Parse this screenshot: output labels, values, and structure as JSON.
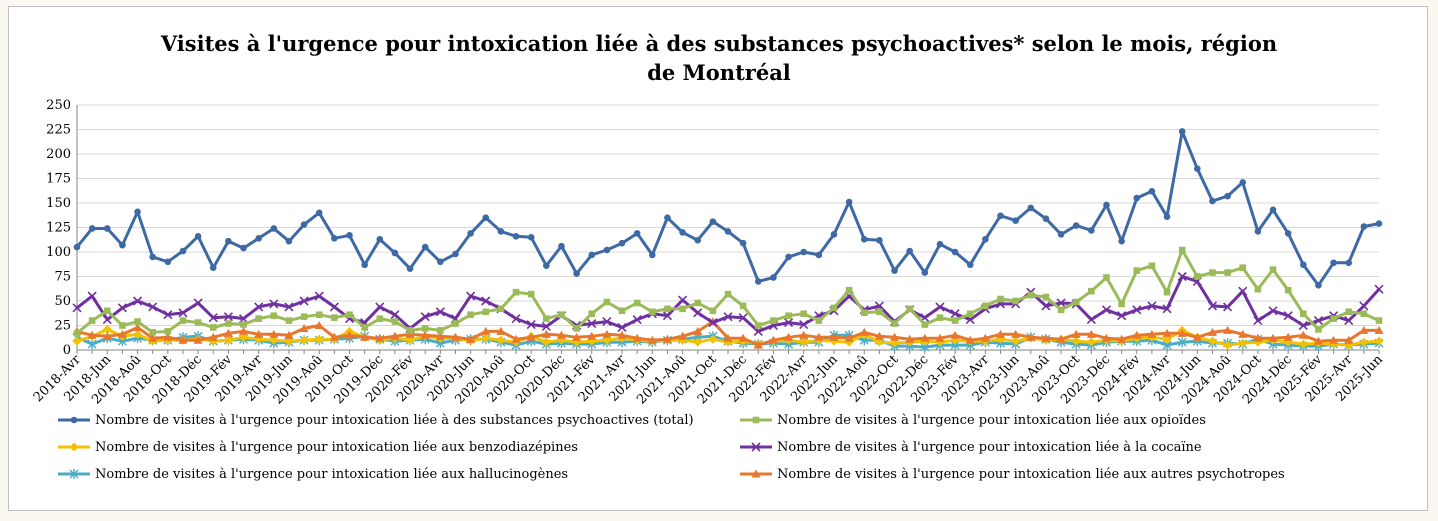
{
  "chart_data": {
    "type": "line",
    "title_line1": "Visites à l'urgence pour intoxication liée à des substances psychoactives* selon le mois, région",
    "title_line2": "de Montréal",
    "ylim": [
      0,
      250
    ],
    "yticks": [
      "0",
      "25",
      "50",
      "75",
      "100",
      "125",
      "150",
      "175",
      "200",
      "225",
      "250"
    ],
    "grid": true,
    "legend_position": "bottom",
    "categories": [
      "2018-Avr",
      "2018-Mai",
      "2018-Jun",
      "2018-Jul",
      "2018-Aoû",
      "2018-Sep",
      "2018-Oct",
      "2018-Nov",
      "2018-Déc",
      "2019-Jan",
      "2019-Fév",
      "2019-Mar",
      "2019-Avr",
      "2019-Mai",
      "2019-Jun",
      "2019-Jul",
      "2019-Aoû",
      "2019-Sep",
      "2019-Oct",
      "2019-Nov",
      "2019-Déc",
      "2020-Jan",
      "2020-Fév",
      "2020-Mar",
      "2020-Avr",
      "2020-Mai",
      "2020-Jun",
      "2020-Jul",
      "2020-Aoû",
      "2020-Sep",
      "2020-Oct",
      "2020-Nov",
      "2020-Déc",
      "2021-Jan",
      "2021-Fév",
      "2021-Mar",
      "2021-Avr",
      "2021-Mai",
      "2021-Jun",
      "2021-Jul",
      "2021-Aoû",
      "2021-Sep",
      "2021-Oct",
      "2021-Nov",
      "2021-Déc",
      "2022-Jan",
      "2022-Fév",
      "2022-Mar",
      "2022-Avr",
      "2022-Mai",
      "2022-Jun",
      "2022-Jul",
      "2022-Aoû",
      "2022-Sep",
      "2022-Oct",
      "2022-Nov",
      "2022-Déc",
      "2023-Jan",
      "2023-Fév",
      "2023-Mar",
      "2023-Avr",
      "2023-Mai",
      "2023-Jun",
      "2023-Jul",
      "2023-Aoû",
      "2023-Sep",
      "2023-Oct",
      "2023-Nov",
      "2023-Déc",
      "2024-Jan",
      "2024-Fév",
      "2024-Mar",
      "2024-Avr",
      "2024-Mai",
      "2024-Jun",
      "2024-Jul",
      "2024-Aoû",
      "2024-Sep",
      "2024-Oct",
      "2024-Nov",
      "2024-Déc",
      "2025-Jan",
      "2025-Fév",
      "2025-Mar",
      "2025-Avr",
      "2025-Mai",
      "2025-Jun"
    ],
    "tick_labels": [
      "2018-Avr",
      "2018-Jun",
      "2018-Aoû",
      "2018-Oct",
      "2018-Déc",
      "2019-Fév",
      "2019-Avr",
      "2019-Jun",
      "2019-Aoû",
      "2019-Oct",
      "2019-Déc",
      "2020-Fév",
      "2020-Avr",
      "2020-Jun",
      "2020-Aoû",
      "2020-Oct",
      "2020-Déc",
      "2021-Fév",
      "2021-Avr",
      "2021-Jun",
      "2021-Aoû",
      "2021-Oct",
      "2021-Déc",
      "2022-Fév",
      "2022-Avr",
      "2022-Jun",
      "2022-Aoû",
      "2022-Oct",
      "2022-Déc",
      "2023-Fév",
      "2023-Avr",
      "2023-Jun",
      "2023-Aoû",
      "2023-Oct",
      "2023-Déc",
      "2024-Fév",
      "2024-Avr",
      "2024-Jun",
      "2024-Aoû",
      "2024-Oct",
      "2024-Déc",
      "2025-Fév",
      "2025-Avr",
      "2025-Jun"
    ],
    "series": [
      {
        "name": "Nombre de visites à l'urgence pour intoxication liée à des substances psychoactives (total)",
        "color": "#3d69a5",
        "marker": "circle",
        "values": [
          105,
          124,
          124,
          107,
          141,
          95,
          90,
          101,
          116,
          84,
          111,
          104,
          114,
          124,
          111,
          128,
          140,
          114,
          117,
          87,
          113,
          99,
          83,
          105,
          90,
          98,
          119,
          135,
          121,
          116,
          115,
          86,
          106,
          78,
          97,
          102,
          109,
          119,
          97,
          135,
          120,
          112,
          131,
          121,
          109,
          70,
          74,
          95,
          100,
          97,
          118,
          151,
          113,
          112,
          81,
          101,
          79,
          108,
          100,
          87,
          113,
          137,
          132,
          145,
          134,
          118,
          127,
          122,
          148,
          111,
          155,
          162,
          136,
          223,
          185,
          152,
          157,
          171,
          121,
          143,
          119,
          87,
          66,
          89,
          89,
          126,
          129
        ]
      },
      {
        "name": "Nombre de visites à l'urgence pour intoxication liée aux opioïdes",
        "color": "#9bbb59",
        "marker": "square",
        "values": [
          17,
          30,
          40,
          25,
          29,
          18,
          19,
          30,
          28,
          23,
          27,
          26,
          32,
          35,
          30,
          34,
          36,
          33,
          36,
          23,
          32,
          29,
          20,
          22,
          20,
          27,
          36,
          39,
          42,
          59,
          57,
          32,
          36,
          22,
          37,
          49,
          40,
          48,
          39,
          42,
          42,
          48,
          40,
          57,
          45,
          25,
          30,
          35,
          37,
          30,
          43,
          61,
          38,
          39,
          27,
          42,
          26,
          33,
          30,
          37,
          45,
          52,
          50,
          56,
          54,
          41,
          49,
          60,
          74,
          47,
          81,
          86,
          59,
          102,
          75,
          79,
          79,
          84,
          62,
          82,
          61,
          37,
          21,
          32,
          39,
          37,
          30
        ]
      },
      {
        "name": "Nombre de visites à l'urgence pour intoxication liée aux benzodiazépines",
        "color": "#f2c200",
        "marker": "diamond",
        "values": [
          9,
          14,
          21,
          14,
          16,
          9,
          10,
          10,
          11,
          9,
          10,
          13,
          11,
          10,
          9,
          10,
          11,
          11,
          19,
          13,
          10,
          12,
          10,
          14,
          12,
          12,
          9,
          12,
          10,
          8,
          14,
          8,
          10,
          8,
          9,
          10,
          12,
          10,
          9,
          10,
          10,
          8,
          11,
          8,
          9,
          6,
          9,
          10,
          8,
          10,
          9,
          8,
          16,
          8,
          7,
          8,
          9,
          8,
          10,
          9,
          9,
          11,
          9,
          12,
          10,
          11,
          9,
          8,
          10,
          9,
          12,
          13,
          11,
          20,
          13,
          9,
          5,
          7,
          8,
          10,
          8,
          6,
          7,
          6,
          5,
          8,
          9
        ]
      },
      {
        "name": "Nombre de visites à l'urgence pour intoxication liée à la cocaïne",
        "color": "#7030a0",
        "marker": "x",
        "values": [
          43,
          55,
          31,
          43,
          50,
          44,
          36,
          38,
          48,
          33,
          34,
          32,
          44,
          47,
          44,
          50,
          55,
          44,
          32,
          28,
          44,
          36,
          22,
          34,
          39,
          32,
          55,
          50,
          42,
          32,
          26,
          24,
          35,
          25,
          27,
          29,
          23,
          31,
          37,
          35,
          51,
          38,
          28,
          34,
          33,
          19,
          25,
          28,
          26,
          35,
          40,
          55,
          41,
          45,
          29,
          41,
          33,
          44,
          37,
          31,
          42,
          47,
          47,
          59,
          45,
          48,
          47,
          31,
          41,
          35,
          41,
          45,
          42,
          75,
          70,
          45,
          44,
          60,
          30,
          40,
          35,
          25,
          30,
          35,
          30,
          45,
          62
        ]
      },
      {
        "name": "Nombre de visites à l'urgence pour intoxication liée aux hallucinogènes",
        "color": "#4bacc6",
        "marker": "star",
        "values": [
          13,
          6,
          12,
          9,
          12,
          10,
          10,
          13,
          14,
          9,
          10,
          11,
          10,
          7,
          8,
          10,
          10,
          11,
          12,
          14,
          11,
          9,
          10,
          11,
          7,
          10,
          11,
          11,
          8,
          5,
          9,
          6,
          7,
          6,
          6,
          8,
          8,
          9,
          8,
          10,
          11,
          13,
          14,
          9,
          7,
          6,
          7,
          6,
          8,
          8,
          15,
          15,
          10,
          10,
          4,
          4,
          3,
          5,
          5,
          5,
          8,
          7,
          6,
          13,
          11,
          8,
          6,
          5,
          8,
          9,
          9,
          10,
          5,
          8,
          9,
          7,
          7,
          6,
          11,
          6,
          5,
          4,
          4,
          6,
          5,
          6,
          7
        ]
      },
      {
        "name": "Nombre de visites à l'urgence pour intoxication liée aux autres psychotropes",
        "color": "#e8772e",
        "marker": "triangle",
        "values": [
          19,
          15,
          14,
          16,
          23,
          12,
          13,
          10,
          10,
          13,
          17,
          19,
          16,
          16,
          15,
          22,
          25,
          13,
          15,
          13,
          12,
          14,
          16,
          15,
          14,
          13,
          11,
          19,
          19,
          11,
          13,
          16,
          15,
          13,
          14,
          16,
          15,
          12,
          10,
          11,
          14,
          19,
          29,
          12,
          12,
          5,
          10,
          13,
          15,
          13,
          13,
          12,
          18,
          14,
          13,
          11,
          12,
          12,
          15,
          10,
          12,
          16,
          16,
          13,
          12,
          11,
          16,
          16,
          12,
          11,
          15,
          16,
          17,
          17,
          13,
          18,
          20,
          16,
          12,
          12,
          13,
          15,
          9,
          10,
          10,
          20,
          20
        ]
      }
    ]
  }
}
